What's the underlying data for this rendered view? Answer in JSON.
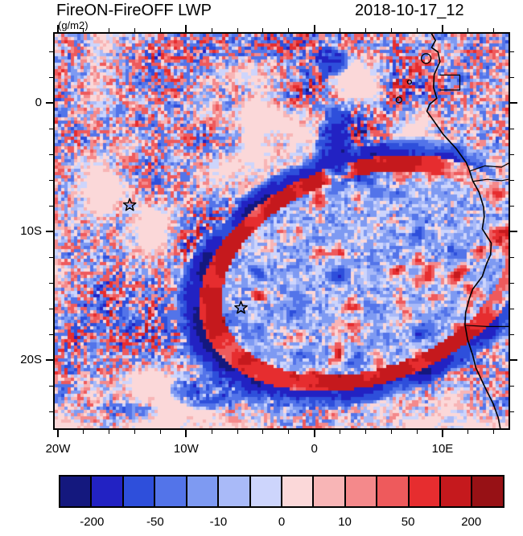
{
  "chart_data": {
    "type": "heatmap",
    "title_left": "FireON-FireOFF LWP",
    "units_label": "(g/m2)",
    "title_right": "2018-10-17_12",
    "background_color": "#ffffff",
    "x_axis": {
      "label_ticks": [
        {
          "value": -20,
          "label": "20W"
        },
        {
          "value": -10,
          "label": "10W"
        },
        {
          "value": 0,
          "label": "0"
        },
        {
          "value": 10,
          "label": "10E"
        }
      ],
      "minor_tick_interval": 2,
      "range": [
        -20.25,
        15.15
      ]
    },
    "y_axis": {
      "label_ticks": [
        {
          "value": 0,
          "label": "0"
        },
        {
          "value": -10,
          "label": "10S"
        },
        {
          "value": -20,
          "label": "20S"
        }
      ],
      "minor_tick_interval": 2,
      "range": [
        5.38,
        -25.31
      ]
    },
    "colorbar": {
      "levels": [
        -200,
        -100,
        -50,
        -20,
        -10,
        -5,
        0,
        5,
        10,
        20,
        50,
        100,
        200
      ],
      "colors": [
        "#14187E",
        "#2222C3",
        "#2E4FDB",
        "#5374E9",
        "#7E9AF2",
        "#A9BAF8",
        "#CDD5FC",
        "#FBD8D9",
        "#F8B5B6",
        "#F4898B",
        "#EE5A5C",
        "#E62D2F",
        "#C5191D",
        "#971115"
      ],
      "labeled_values": [
        -200,
        -50,
        -10,
        0,
        10,
        50,
        200
      ]
    },
    "markers": [
      {
        "id": "marker-west",
        "symbol": "star",
        "lon": -14.4,
        "lat": -7.95
      },
      {
        "id": "marker-east",
        "symbol": "star",
        "lon": -5.72,
        "lat": -15.95
      }
    ],
    "geo": {
      "coastline": [
        [
          9.15,
          5.38
        ],
        [
          9.45,
          4.85
        ],
        [
          9.15,
          4.3
        ],
        [
          9.65,
          3.95
        ],
        [
          9.8,
          3.2
        ],
        [
          9.35,
          2.2
        ],
        [
          9.3,
          1.2
        ],
        [
          9.55,
          0.35
        ],
        [
          9.0,
          -0.1
        ],
        [
          8.78,
          -0.65
        ],
        [
          9.35,
          -1.45
        ],
        [
          10.05,
          -2.45
        ],
        [
          11.1,
          -3.6
        ],
        [
          11.85,
          -4.65
        ],
        [
          12.1,
          -5.25
        ],
        [
          12.35,
          -6.05
        ],
        [
          12.85,
          -6.95
        ],
        [
          13.2,
          -8.1
        ],
        [
          13.25,
          -8.85
        ],
        [
          13.1,
          -9.8
        ],
        [
          13.8,
          -10.9
        ],
        [
          13.75,
          -11.8
        ],
        [
          13.4,
          -12.6
        ],
        [
          13.1,
          -13.5
        ],
        [
          12.35,
          -14.5
        ],
        [
          12.1,
          -15.2
        ],
        [
          11.8,
          -16.3
        ],
        [
          11.75,
          -17.25
        ],
        [
          11.95,
          -18.4
        ],
        [
          12.35,
          -19.6
        ],
        [
          12.6,
          -20.6
        ],
        [
          13.25,
          -22.0
        ],
        [
          13.95,
          -23.4
        ],
        [
          14.35,
          -24.5
        ],
        [
          14.5,
          -25.31
        ]
      ],
      "borders": [
        [
          [
            11.78,
            -17.3
          ],
          [
            13.5,
            -17.4
          ],
          [
            15.15,
            -17.4
          ]
        ],
        [
          [
            12.15,
            -5.3
          ],
          [
            13.3,
            -4.9
          ],
          [
            14.6,
            -5.0
          ],
          [
            15.15,
            -4.7
          ]
        ],
        [
          [
            12.4,
            -6.1
          ],
          [
            13.5,
            -5.95
          ],
          [
            14.6,
            -6.05
          ],
          [
            15.15,
            -5.95
          ]
        ],
        [
          [
            9.8,
            2.16
          ],
          [
            11.35,
            2.16
          ]
        ],
        [
          [
            9.8,
            1.0
          ],
          [
            11.35,
            1.0
          ],
          [
            11.35,
            2.16
          ]
        ]
      ],
      "islands": [
        {
          "lon": 8.72,
          "lat": 3.45,
          "r": 6
        },
        {
          "lon": 7.42,
          "lat": 1.62,
          "r": 2.5
        },
        {
          "lon": 6.6,
          "lat": 0.23,
          "r": 3.5
        }
      ]
    }
  }
}
